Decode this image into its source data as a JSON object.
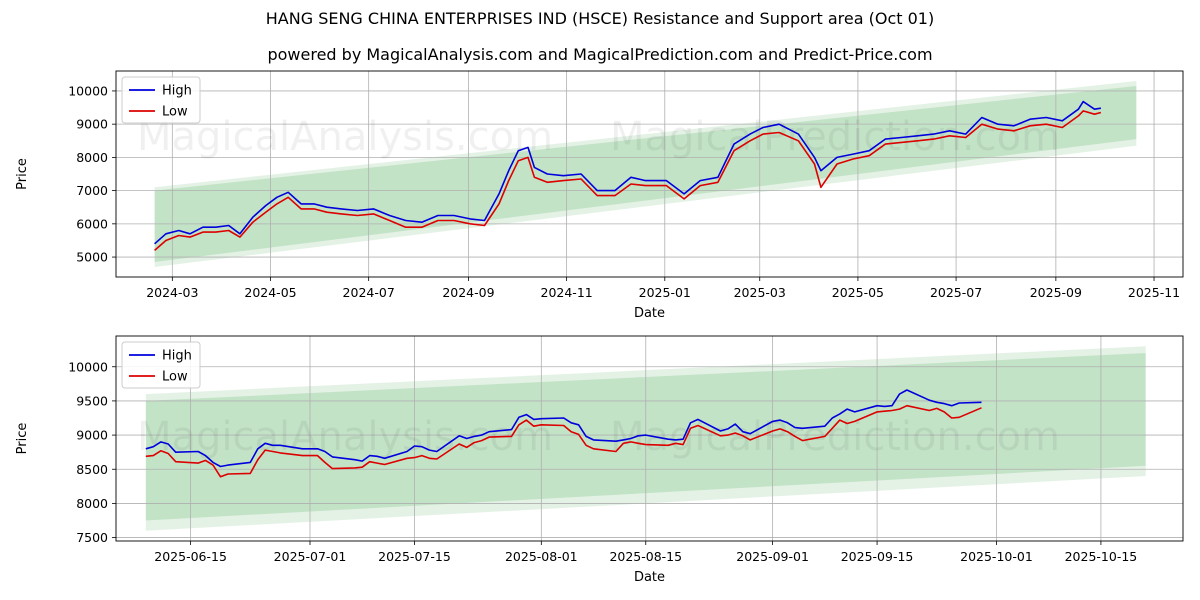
{
  "title": "HANG SENG CHINA ENTERPRISES IND (HSCE) Resistance and Support area (Oct 01)",
  "subtitle": "powered by MagicalAnalysis.com and MagicalPrediction.com and Predict-Price.com",
  "watermarks": [
    "MagicalAnalysis.com",
    "MagicalPrediction.com"
  ],
  "colors": {
    "high": "#0000dd",
    "low": "#dd0000",
    "band": "#2e9e3e",
    "grid": "#b0b0b0"
  },
  "chart_data": [
    {
      "type": "line",
      "xlabel": "Date",
      "ylabel": "Price",
      "legend": "top-left",
      "grid": true,
      "xlim": [
        "2024-01-26",
        "2025-11-19"
      ],
      "ylim": [
        4400,
        10600
      ],
      "x_ticks": [
        "2024-03-01",
        "2024-05-01",
        "2024-07-01",
        "2024-09-01",
        "2024-11-01",
        "2025-01-01",
        "2025-03-01",
        "2025-05-01",
        "2025-07-01",
        "2025-09-01",
        "2025-11-01"
      ],
      "x_tick_labels": [
        "2024-03",
        "2024-05",
        "2024-07",
        "2024-09",
        "2024-11",
        "2025-01",
        "2025-03",
        "2025-05",
        "2025-07",
        "2025-09",
        "2025-11"
      ],
      "y_ticks": [
        5000,
        6000,
        7000,
        8000,
        9000,
        10000
      ],
      "y_tick_labels": [
        "5000",
        "6000",
        "7000",
        "8000",
        "9000",
        "10000"
      ],
      "band": {
        "x": [
          "2024-02-19",
          "2025-10-21"
        ],
        "outer_lower": [
          4700,
          8350
        ],
        "outer_upper": [
          7100,
          10300
        ],
        "inner_lower": [
          4850,
          8550
        ],
        "inner_upper": [
          7000,
          10150
        ]
      },
      "series": [
        {
          "name": "High",
          "x": [
            "2024-02-19",
            "2024-02-26",
            "2024-03-05",
            "2024-03-12",
            "2024-03-20",
            "2024-03-28",
            "2024-04-05",
            "2024-04-12",
            "2024-04-20",
            "2024-04-28",
            "2024-05-05",
            "2024-05-12",
            "2024-05-20",
            "2024-05-28",
            "2024-06-05",
            "2024-06-14",
            "2024-06-24",
            "2024-07-04",
            "2024-07-14",
            "2024-07-24",
            "2024-08-03",
            "2024-08-13",
            "2024-08-23",
            "2024-09-02",
            "2024-09-11",
            "2024-09-20",
            "2024-09-26",
            "2024-10-02",
            "2024-10-08",
            "2024-10-12",
            "2024-10-20",
            "2024-10-30",
            "2024-11-10",
            "2024-11-20",
            "2024-12-01",
            "2024-12-11",
            "2024-12-20",
            "2025-01-02",
            "2025-01-13",
            "2025-01-23",
            "2025-02-03",
            "2025-02-13",
            "2025-02-23",
            "2025-03-03",
            "2025-03-13",
            "2025-03-25",
            "2025-04-04",
            "2025-04-08",
            "2025-04-18",
            "2025-04-28",
            "2025-05-08",
            "2025-05-18",
            "2025-05-28",
            "2025-06-07",
            "2025-06-17",
            "2025-06-27",
            "2025-07-07",
            "2025-07-17",
            "2025-07-27",
            "2025-08-06",
            "2025-08-16",
            "2025-08-26",
            "2025-09-05",
            "2025-09-15",
            "2025-09-18",
            "2025-09-25",
            "2025-09-29"
          ],
          "values": [
            5400,
            5700,
            5800,
            5700,
            5900,
            5900,
            5950,
            5700,
            6200,
            6550,
            6800,
            6950,
            6600,
            6600,
            6500,
            6450,
            6400,
            6450,
            6250,
            6100,
            6050,
            6250,
            6250,
            6150,
            6100,
            6900,
            7600,
            8200,
            8300,
            7700,
            7500,
            7450,
            7500,
            7000,
            7000,
            7400,
            7300,
            7300,
            6900,
            7300,
            7400,
            8400,
            8700,
            8900,
            9000,
            8700,
            8000,
            7600,
            8000,
            8100,
            8200,
            8550,
            8600,
            8650,
            8700,
            8800,
            8700,
            9200,
            9000,
            8950,
            9150,
            9200,
            9100,
            9450,
            9680,
            9450,
            9480
          ]
        },
        {
          "name": "Low",
          "x": [
            "2024-02-19",
            "2024-02-26",
            "2024-03-05",
            "2024-03-12",
            "2024-03-20",
            "2024-03-28",
            "2024-04-05",
            "2024-04-12",
            "2024-04-20",
            "2024-04-28",
            "2024-05-05",
            "2024-05-12",
            "2024-05-20",
            "2024-05-28",
            "2024-06-05",
            "2024-06-14",
            "2024-06-24",
            "2024-07-04",
            "2024-07-14",
            "2024-07-24",
            "2024-08-03",
            "2024-08-13",
            "2024-08-23",
            "2024-09-02",
            "2024-09-11",
            "2024-09-20",
            "2024-09-26",
            "2024-10-02",
            "2024-10-08",
            "2024-10-12",
            "2024-10-20",
            "2024-10-30",
            "2024-11-10",
            "2024-11-20",
            "2024-12-01",
            "2024-12-11",
            "2024-12-20",
            "2025-01-02",
            "2025-01-13",
            "2025-01-23",
            "2025-02-03",
            "2025-02-13",
            "2025-02-23",
            "2025-03-03",
            "2025-03-13",
            "2025-03-25",
            "2025-04-04",
            "2025-04-08",
            "2025-04-18",
            "2025-04-28",
            "2025-05-08",
            "2025-05-18",
            "2025-05-28",
            "2025-06-07",
            "2025-06-17",
            "2025-06-27",
            "2025-07-07",
            "2025-07-17",
            "2025-07-27",
            "2025-08-06",
            "2025-08-16",
            "2025-08-26",
            "2025-09-05",
            "2025-09-15",
            "2025-09-18",
            "2025-09-25",
            "2025-09-29"
          ],
          "values": [
            5200,
            5500,
            5650,
            5600,
            5750,
            5750,
            5800,
            5600,
            6050,
            6350,
            6600,
            6800,
            6450,
            6450,
            6350,
            6300,
            6250,
            6300,
            6100,
            5900,
            5900,
            6100,
            6100,
            6000,
            5950,
            6600,
            7300,
            7900,
            8000,
            7400,
            7250,
            7300,
            7350,
            6850,
            6850,
            7200,
            7150,
            7150,
            6750,
            7150,
            7250,
            8200,
            8500,
            8700,
            8750,
            8500,
            7800,
            7100,
            7800,
            7950,
            8050,
            8400,
            8450,
            8500,
            8550,
            8650,
            8600,
            9000,
            8850,
            8800,
            8950,
            9000,
            8900,
            9250,
            9400,
            9300,
            9350
          ]
        }
      ]
    },
    {
      "type": "line",
      "xlabel": "Date",
      "ylabel": "Price",
      "legend": "top-left",
      "grid": true,
      "xlim": [
        "2025-06-05",
        "2025-10-26"
      ],
      "ylim": [
        7450,
        10450
      ],
      "x_ticks": [
        "2025-06-15",
        "2025-07-01",
        "2025-07-15",
        "2025-08-01",
        "2025-08-15",
        "2025-09-01",
        "2025-09-15",
        "2025-10-01",
        "2025-10-15"
      ],
      "x_tick_labels": [
        "2025-06-15",
        "2025-07-01",
        "2025-07-15",
        "2025-08-01",
        "2025-08-15",
        "2025-09-01",
        "2025-09-15",
        "2025-10-01",
        "2025-10-15"
      ],
      "y_ticks": [
        7500,
        8000,
        8500,
        9000,
        9500,
        10000
      ],
      "y_tick_labels": [
        "7500",
        "8000",
        "8500",
        "9000",
        "9500",
        "10000"
      ],
      "band": {
        "x": [
          "2025-06-09",
          "2025-10-21"
        ],
        "outer_lower": [
          7600,
          8400
        ],
        "outer_upper": [
          9600,
          10300
        ],
        "inner_lower": [
          7750,
          8550
        ],
        "inner_upper": [
          9500,
          10200
        ]
      },
      "series": [
        {
          "name": "High",
          "x": [
            "2025-06-09",
            "2025-06-10",
            "2025-06-11",
            "2025-06-12",
            "2025-06-13",
            "2025-06-16",
            "2025-06-17",
            "2025-06-18",
            "2025-06-19",
            "2025-06-20",
            "2025-06-23",
            "2025-06-24",
            "2025-06-25",
            "2025-06-26",
            "2025-06-27",
            "2025-06-30",
            "2025-07-02",
            "2025-07-03",
            "2025-07-04",
            "2025-07-07",
            "2025-07-08",
            "2025-07-09",
            "2025-07-10",
            "2025-07-11",
            "2025-07-14",
            "2025-07-15",
            "2025-07-16",
            "2025-07-17",
            "2025-07-18",
            "2025-07-21",
            "2025-07-22",
            "2025-07-23",
            "2025-07-24",
            "2025-07-25",
            "2025-07-28",
            "2025-07-29",
            "2025-07-30",
            "2025-07-31",
            "2025-08-01",
            "2025-08-04",
            "2025-08-05",
            "2025-08-06",
            "2025-08-07",
            "2025-08-08",
            "2025-08-11",
            "2025-08-12",
            "2025-08-13",
            "2025-08-14",
            "2025-08-15",
            "2025-08-18",
            "2025-08-19",
            "2025-08-20",
            "2025-08-21",
            "2025-08-22",
            "2025-08-25",
            "2025-08-26",
            "2025-08-27",
            "2025-08-28",
            "2025-08-29",
            "2025-09-01",
            "2025-09-02",
            "2025-09-03",
            "2025-09-04",
            "2025-09-05",
            "2025-09-08",
            "2025-09-09",
            "2025-09-10",
            "2025-09-11",
            "2025-09-12",
            "2025-09-15",
            "2025-09-16",
            "2025-09-17",
            "2025-09-18",
            "2025-09-19",
            "2025-09-22",
            "2025-09-23",
            "2025-09-24",
            "2025-09-25",
            "2025-09-26",
            "2025-09-29"
          ],
          "values": [
            8800,
            8830,
            8900,
            8870,
            8750,
            8760,
            8700,
            8600,
            8540,
            8560,
            8600,
            8800,
            8880,
            8850,
            8850,
            8800,
            8800,
            8760,
            8680,
            8640,
            8620,
            8700,
            8690,
            8660,
            8760,
            8840,
            8830,
            8780,
            8760,
            8990,
            8950,
            8980,
            9000,
            9050,
            9080,
            9260,
            9300,
            9230,
            9240,
            9250,
            9180,
            9150,
            8980,
            8930,
            8910,
            8930,
            8950,
            8990,
            9000,
            8940,
            8930,
            8940,
            9180,
            9230,
            9060,
            9090,
            9160,
            9050,
            9020,
            9200,
            9220,
            9180,
            9110,
            9100,
            9130,
            9250,
            9310,
            9380,
            9340,
            9430,
            9420,
            9430,
            9600,
            9660,
            9510,
            9480,
            9460,
            9430,
            9470,
            9480
          ]
        },
        {
          "name": "Low",
          "x": [
            "2025-06-09",
            "2025-06-10",
            "2025-06-11",
            "2025-06-12",
            "2025-06-13",
            "2025-06-16",
            "2025-06-17",
            "2025-06-18",
            "2025-06-19",
            "2025-06-20",
            "2025-06-23",
            "2025-06-24",
            "2025-06-25",
            "2025-06-26",
            "2025-06-27",
            "2025-06-30",
            "2025-07-02",
            "2025-07-03",
            "2025-07-04",
            "2025-07-07",
            "2025-07-08",
            "2025-07-09",
            "2025-07-10",
            "2025-07-11",
            "2025-07-14",
            "2025-07-15",
            "2025-07-16",
            "2025-07-17",
            "2025-07-18",
            "2025-07-21",
            "2025-07-22",
            "2025-07-23",
            "2025-07-24",
            "2025-07-25",
            "2025-07-28",
            "2025-07-29",
            "2025-07-30",
            "2025-07-31",
            "2025-08-01",
            "2025-08-04",
            "2025-08-05",
            "2025-08-06",
            "2025-08-07",
            "2025-08-08",
            "2025-08-11",
            "2025-08-12",
            "2025-08-13",
            "2025-08-14",
            "2025-08-15",
            "2025-08-18",
            "2025-08-19",
            "2025-08-20",
            "2025-08-21",
            "2025-08-22",
            "2025-08-25",
            "2025-08-26",
            "2025-08-27",
            "2025-08-28",
            "2025-08-29",
            "2025-09-01",
            "2025-09-02",
            "2025-09-03",
            "2025-09-04",
            "2025-09-05",
            "2025-09-08",
            "2025-09-09",
            "2025-09-10",
            "2025-09-11",
            "2025-09-12",
            "2025-09-15",
            "2025-09-16",
            "2025-09-17",
            "2025-09-18",
            "2025-09-19",
            "2025-09-22",
            "2025-09-23",
            "2025-09-24",
            "2025-09-25",
            "2025-09-26",
            "2025-09-29"
          ],
          "values": [
            8690,
            8700,
            8770,
            8730,
            8610,
            8590,
            8630,
            8560,
            8390,
            8430,
            8440,
            8640,
            8780,
            8760,
            8740,
            8700,
            8700,
            8600,
            8510,
            8520,
            8530,
            8610,
            8590,
            8570,
            8660,
            8670,
            8700,
            8660,
            8650,
            8870,
            8820,
            8890,
            8920,
            8970,
            8980,
            9150,
            9220,
            9130,
            9150,
            9140,
            9050,
            9010,
            8850,
            8800,
            8760,
            8880,
            8900,
            8880,
            8860,
            8850,
            8880,
            8860,
            9100,
            9140,
            8990,
            9000,
            9030,
            8990,
            8930,
            9060,
            9090,
            9050,
            8980,
            8920,
            8980,
            9100,
            9220,
            9170,
            9200,
            9340,
            9350,
            9360,
            9380,
            9430,
            9360,
            9390,
            9340,
            9250,
            9260,
            9400
          ]
        }
      ]
    }
  ]
}
